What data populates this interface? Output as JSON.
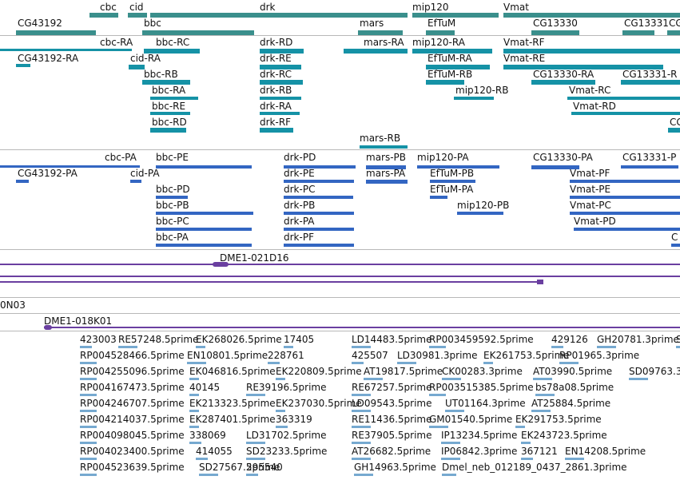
{
  "colors": {
    "gene": "#3a8f8c",
    "mrna": "#1592a6",
    "protein": "#3366c2",
    "clone": "#6a3fa0",
    "est": "#76a9d0",
    "divider": "#b8b8b8",
    "text": "#111111"
  },
  "tracks": [
    {
      "id": "genes",
      "name": "gene-track",
      "color": "#3a8f8c",
      "features": [
        {
          "label": "cbc",
          "name": "gene-cbc"
        },
        {
          "label": "cid",
          "name": "gene-cid"
        },
        {
          "label": "drk",
          "name": "gene-drk"
        },
        {
          "label": "mip120",
          "name": "gene-mip120"
        },
        {
          "label": "Vmat",
          "name": "gene-vmat"
        },
        {
          "label": "CG43192",
          "name": "gene-cg43192"
        },
        {
          "label": "bbc",
          "name": "gene-bbc"
        },
        {
          "label": "mars",
          "name": "gene-mars"
        },
        {
          "label": "EfTuM",
          "name": "gene-eftum"
        },
        {
          "label": "CG13330",
          "name": "gene-cg13330"
        },
        {
          "label": "CG13331",
          "name": "gene-cg13331"
        },
        {
          "label": "CG",
          "name": "gene-cg-edge"
        }
      ]
    },
    {
      "id": "transcripts",
      "name": "transcript-track",
      "color": "#1592a6",
      "features": [
        {
          "label": "cbc-RA",
          "name": "transcript-cbc-ra"
        },
        {
          "label": "bbc-RC",
          "name": "transcript-bbc-rc"
        },
        {
          "label": "drk-RD",
          "name": "transcript-drk-rd"
        },
        {
          "label": "mars-RA",
          "name": "transcript-mars-ra"
        },
        {
          "label": "mip120-RA",
          "name": "transcript-mip120-ra"
        },
        {
          "label": "Vmat-RF",
          "name": "transcript-vmat-rf"
        },
        {
          "label": "CG43192-RA",
          "name": "transcript-cg43192-ra"
        },
        {
          "label": "cid-RA",
          "name": "transcript-cid-ra"
        },
        {
          "label": "drk-RE",
          "name": "transcript-drk-re"
        },
        {
          "label": "EfTuM-RA",
          "name": "transcript-eftum-ra"
        },
        {
          "label": "Vmat-RE",
          "name": "transcript-vmat-re"
        },
        {
          "label": "bbc-RB",
          "name": "transcript-bbc-rb"
        },
        {
          "label": "drk-RC",
          "name": "transcript-drk-rc"
        },
        {
          "label": "EfTuM-RB",
          "name": "transcript-eftum-rb"
        },
        {
          "label": "CG13330-RA",
          "name": "transcript-cg13330-ra"
        },
        {
          "label": "CG13331-R",
          "name": "transcript-cg13331-r"
        },
        {
          "label": "bbc-RA",
          "name": "transcript-bbc-ra"
        },
        {
          "label": "drk-RB",
          "name": "transcript-drk-rb"
        },
        {
          "label": "mip120-RB",
          "name": "transcript-mip120-rb"
        },
        {
          "label": "Vmat-RC",
          "name": "transcript-vmat-rc"
        },
        {
          "label": "bbc-RE",
          "name": "transcript-bbc-re"
        },
        {
          "label": "drk-RA",
          "name": "transcript-drk-ra"
        },
        {
          "label": "Vmat-RD",
          "name": "transcript-vmat-rd"
        },
        {
          "label": "bbc-RD",
          "name": "transcript-bbc-rd"
        },
        {
          "label": "drk-RF",
          "name": "transcript-drk-rf"
        },
        {
          "label": "CG",
          "name": "transcript-cg-edge"
        },
        {
          "label": "mars-RB",
          "name": "transcript-mars-rb"
        }
      ]
    },
    {
      "id": "proteins",
      "name": "protein-track",
      "color": "#3366c2",
      "features": [
        {
          "label": "cbc-PA",
          "name": "protein-cbc-pa"
        },
        {
          "label": "bbc-PE",
          "name": "protein-bbc-pe"
        },
        {
          "label": "drk-PD",
          "name": "protein-drk-pd"
        },
        {
          "label": "mars-PB",
          "name": "protein-mars-pb"
        },
        {
          "label": "mip120-PA",
          "name": "protein-mip120-pa"
        },
        {
          "label": "CG13330-PA",
          "name": "protein-cg13330-pa"
        },
        {
          "label": "CG13331-P",
          "name": "protein-cg13331-p"
        },
        {
          "label": "CG43192-PA",
          "name": "protein-cg43192-pa"
        },
        {
          "label": "cid-PA",
          "name": "protein-cid-pa"
        },
        {
          "label": "drk-PE",
          "name": "protein-drk-pe"
        },
        {
          "label": "mars-PA",
          "name": "protein-mars-pa"
        },
        {
          "label": "EfTuM-PB",
          "name": "protein-eftum-pb"
        },
        {
          "label": "Vmat-PF",
          "name": "protein-vmat-pf"
        },
        {
          "label": "bbc-PD",
          "name": "protein-bbc-pd"
        },
        {
          "label": "drk-PC",
          "name": "protein-drk-pc"
        },
        {
          "label": "EfTuM-PA",
          "name": "protein-eftum-pa"
        },
        {
          "label": "Vmat-PE",
          "name": "protein-vmat-pe"
        },
        {
          "label": "bbc-PB",
          "name": "protein-bbc-pb"
        },
        {
          "label": "drk-PB",
          "name": "protein-drk-pb"
        },
        {
          "label": "mip120-PB",
          "name": "protein-mip120-pb"
        },
        {
          "label": "Vmat-PC",
          "name": "protein-vmat-pc"
        },
        {
          "label": "bbc-PC",
          "name": "protein-bbc-pc"
        },
        {
          "label": "drk-PA",
          "name": "protein-drk-pa"
        },
        {
          "label": "Vmat-PD",
          "name": "protein-vmat-pd"
        },
        {
          "label": "bbc-PA",
          "name": "protein-bbc-pa"
        },
        {
          "label": "drk-PF",
          "name": "protein-drk-pf"
        },
        {
          "label": "C",
          "name": "protein-c-edge"
        }
      ]
    },
    {
      "id": "clones",
      "name": "clone-track",
      "color": "#6a3fa0",
      "features": [
        {
          "label": "DME1-021D16",
          "name": "clone-dme1-021d16"
        },
        {
          "label": "0N03",
          "name": "clone-0n03"
        },
        {
          "label": "DME1-018K01",
          "name": "clone-dme1-018k01"
        }
      ]
    },
    {
      "id": "ests",
      "name": "est-track",
      "color": "#76a9d0",
      "features": [
        {
          "label": "423003",
          "name": "est-423003"
        },
        {
          "label": "RE57248.5prime",
          "name": "est-re57248"
        },
        {
          "label": "EK268026.5prime",
          "name": "est-ek268026"
        },
        {
          "label": "17405",
          "name": "est-17405"
        },
        {
          "label": "LD14483.5prime",
          "name": "est-ld14483"
        },
        {
          "label": "RP003459592.5prime",
          "name": "est-rp003459592"
        },
        {
          "label": "429126",
          "name": "est-429126"
        },
        {
          "label": "GH20781.3prime",
          "name": "est-gh20781"
        },
        {
          "label": "S",
          "name": "est-s-edge"
        },
        {
          "label": "RP004528466.5prime",
          "name": "est-rp004528466"
        },
        {
          "label": "EN10801.5prime",
          "name": "est-en10801"
        },
        {
          "label": "228761",
          "name": "est-228761"
        },
        {
          "label": "425507",
          "name": "est-425507"
        },
        {
          "label": "LD30981.3prime",
          "name": "est-ld30981"
        },
        {
          "label": "EK261753.5prime",
          "name": "est-ek261753"
        },
        {
          "label": "RP01965.3prime",
          "name": "est-rp01965"
        },
        {
          "label": "RP004255096.5prime",
          "name": "est-rp004255096"
        },
        {
          "label": "EK046816.5prime",
          "name": "est-ek046816"
        },
        {
          "label": "EK220809.5prime",
          "name": "est-ek220809"
        },
        {
          "label": "AT19817.5prime",
          "name": "est-at19817"
        },
        {
          "label": "CK00283.3prime",
          "name": "est-ck00283"
        },
        {
          "label": "AT03990.5prime",
          "name": "est-at03990"
        },
        {
          "label": "SD09763.3",
          "name": "est-sd09763"
        },
        {
          "label": "RP004167473.5prime",
          "name": "est-rp004167473"
        },
        {
          "label": "40145",
          "name": "est-40145"
        },
        {
          "label": "RE39196.5prime",
          "name": "est-re39196"
        },
        {
          "label": "RE67257.5prime",
          "name": "est-re67257"
        },
        {
          "label": "RP003515385.5prime",
          "name": "est-rp003515385"
        },
        {
          "label": "bs78a08.5prime",
          "name": "est-bs78a08"
        },
        {
          "label": "RP004246707.5prime",
          "name": "est-rp004246707"
        },
        {
          "label": "EK213323.5prime",
          "name": "est-ek213323"
        },
        {
          "label": "EK237030.5prime",
          "name": "est-ek237030"
        },
        {
          "label": "LD09543.5prime",
          "name": "est-ld09543"
        },
        {
          "label": "UT01164.3prime",
          "name": "est-ut01164"
        },
        {
          "label": "AT25884.5prime",
          "name": "est-at25884"
        },
        {
          "label": "RP004214037.5prime",
          "name": "est-rp004214037"
        },
        {
          "label": "EK287401.5prime",
          "name": "est-ek287401"
        },
        {
          "label": "363319",
          "name": "est-363319"
        },
        {
          "label": "RE11436.5prime",
          "name": "est-re11436"
        },
        {
          "label": "GM01540.5prime",
          "name": "est-gm01540"
        },
        {
          "label": "EK291753.5prime",
          "name": "est-ek291753"
        },
        {
          "label": "RP004098045.5prime",
          "name": "est-rp004098045"
        },
        {
          "label": "338069",
          "name": "est-338069"
        },
        {
          "label": "LD31702.5prime",
          "name": "est-ld31702"
        },
        {
          "label": "RE37905.5prime",
          "name": "est-re37905"
        },
        {
          "label": "IP13234.5prime",
          "name": "est-ip13234"
        },
        {
          "label": "EK243723.5prime",
          "name": "est-ek243723"
        },
        {
          "label": "RP004023400.5prime",
          "name": "est-rp004023400"
        },
        {
          "label": "414055",
          "name": "est-414055"
        },
        {
          "label": "SD23233.5prime",
          "name": "est-sd23233"
        },
        {
          "label": "AT26682.5prime",
          "name": "est-at26682"
        },
        {
          "label": "IP06842.3prime",
          "name": "est-ip06842"
        },
        {
          "label": "367121",
          "name": "est-367121"
        },
        {
          "label": "EN14208.5prime",
          "name": "est-en14208"
        },
        {
          "label": "RP004523639.5prime",
          "name": "est-rp004523639"
        },
        {
          "label": "SD27567.5prime",
          "name": "est-sd27567"
        },
        {
          "label": "295540",
          "name": "est-295540"
        },
        {
          "label": "GH14963.5prime",
          "name": "est-gh14963"
        },
        {
          "label": "Dmel_neb_012189_0437_2861.3prime",
          "name": "est-dmel-neb-012189"
        }
      ]
    }
  ]
}
